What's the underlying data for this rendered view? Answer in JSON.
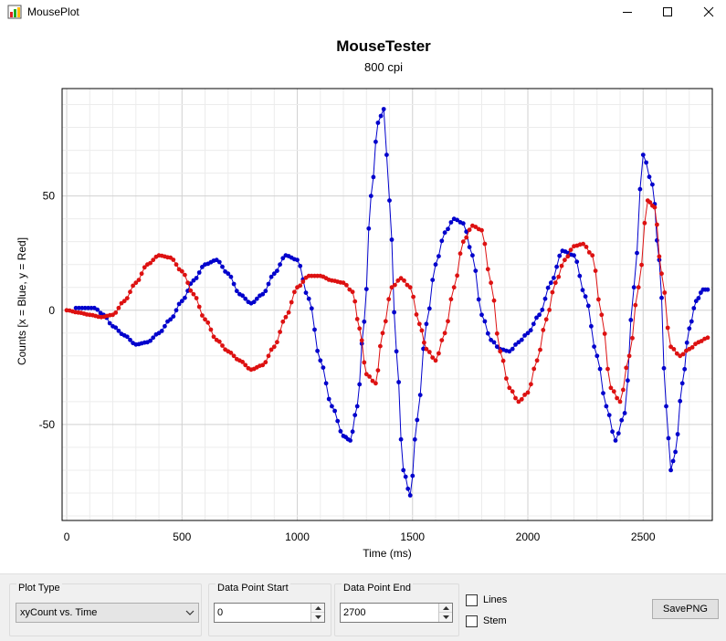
{
  "window": {
    "title": "MousePlot",
    "icon": "mouseplot-app-icon"
  },
  "plot": {
    "title": "MouseTester",
    "subtitle": "800 cpi"
  },
  "chart_data": {
    "type": "scatter",
    "title": "MouseTester",
    "subtitle": "800 cpi",
    "xlabel": "Time (ms)",
    "ylabel": "Counts [x = Blue, y = Red]",
    "xlim": [
      -20,
      2800
    ],
    "ylim": [
      -92,
      97
    ],
    "xticks": [
      0,
      500,
      1000,
      1500,
      2000,
      2500
    ],
    "yticks": [
      -50,
      0,
      50
    ],
    "grid": true,
    "lines": true,
    "series": [
      {
        "color": "#0000cc",
        "x": [
          40,
          80,
          120,
          160,
          200,
          250,
          300,
          350,
          400,
          450,
          500,
          550,
          600,
          650,
          700,
          750,
          800,
          850,
          900,
          950,
          1000,
          1050,
          1100,
          1150,
          1200,
          1230,
          1260,
          1290,
          1320,
          1350,
          1375,
          1400,
          1430,
          1460,
          1490,
          1520,
          1560,
          1600,
          1640,
          1680,
          1720,
          1760,
          1800,
          1840,
          1880,
          1920,
          1960,
          2000,
          2050,
          2100,
          2150,
          2200,
          2250,
          2300,
          2340,
          2380,
          2420,
          2460,
          2500,
          2540,
          2570,
          2600,
          2620,
          2640,
          2670,
          2700,
          2730,
          2760,
          2780
        ],
        "y": [
          1,
          1,
          1,
          -2,
          -7,
          -11,
          -15,
          -14,
          -10,
          -4,
          4,
          13,
          20,
          22,
          16,
          7,
          3,
          7,
          16,
          24,
          22,
          5,
          -22,
          -42,
          -55,
          -57,
          -42,
          -5,
          50,
          82,
          88,
          48,
          -18,
          -70,
          -81,
          -48,
          -6,
          20,
          34,
          40,
          38,
          24,
          -2,
          -13,
          -17,
          -18,
          -14,
          -10,
          -2,
          12,
          26,
          24,
          6,
          -20,
          -42,
          -57,
          -45,
          10,
          68,
          55,
          22,
          -42,
          -70,
          -62,
          -32,
          -8,
          4,
          9,
          9
        ]
      },
      {
        "color": "#dd1111",
        "x": [
          0,
          50,
          100,
          150,
          200,
          250,
          300,
          350,
          400,
          450,
          500,
          550,
          600,
          650,
          700,
          750,
          800,
          850,
          900,
          950,
          1000,
          1050,
          1100,
          1150,
          1200,
          1240,
          1270,
          1300,
          1340,
          1370,
          1410,
          1450,
          1490,
          1530,
          1560,
          1600,
          1640,
          1680,
          1720,
          1760,
          1800,
          1840,
          1880,
          1920,
          1960,
          2000,
          2040,
          2080,
          2120,
          2160,
          2200,
          2240,
          2280,
          2320,
          2360,
          2400,
          2440,
          2480,
          2520,
          2550,
          2580,
          2620,
          2660,
          2700,
          2740,
          2780
        ],
        "y": [
          0,
          -1,
          -2,
          -3,
          -2,
          4,
          12,
          20,
          24,
          23,
          17,
          7,
          -4,
          -13,
          -18,
          -22,
          -26,
          -24,
          -16,
          -3,
          10,
          15,
          15,
          13,
          12,
          8,
          -8,
          -28,
          -32,
          -10,
          10,
          14,
          10,
          -6,
          -17,
          -22,
          -10,
          10,
          30,
          37,
          35,
          12,
          -18,
          -34,
          -40,
          -36,
          -22,
          -4,
          12,
          22,
          28,
          29,
          24,
          -2,
          -34,
          -40,
          -20,
          10,
          48,
          45,
          16,
          -16,
          -20,
          -17,
          -14,
          -12
        ]
      }
    ]
  },
  "controls": {
    "plot_type": {
      "label": "Plot Type",
      "value": "xyCount vs. Time"
    },
    "data_point_start": {
      "label": "Data Point Start",
      "value": "0"
    },
    "data_point_end": {
      "label": "Data Point End",
      "value": "2700"
    },
    "lines_checkbox": {
      "label": "Lines",
      "checked": false
    },
    "stem_checkbox": {
      "label": "Stem",
      "checked": false
    },
    "save_button": {
      "label": "SavePNG"
    }
  }
}
